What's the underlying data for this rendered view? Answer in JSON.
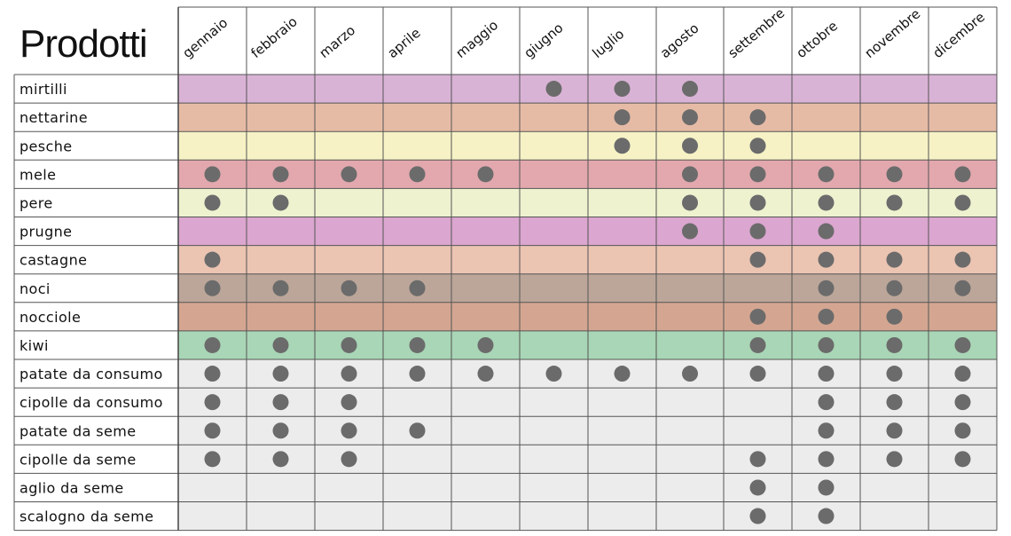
{
  "chart_data": {
    "type": "table",
    "title": "Prodotti",
    "months": [
      "gennaio",
      "febbraio",
      "marzo",
      "aprile",
      "maggio",
      "giugno",
      "luglio",
      "agosto",
      "settembre",
      "ottobre",
      "novembre",
      "dicembre"
    ],
    "rows": [
      {
        "name": "mirtilli",
        "color": "#d9b3d6",
        "months": [
          6,
          7,
          8
        ]
      },
      {
        "name": "nettarine",
        "color": "#e6bba6",
        "months": [
          7,
          8,
          9
        ]
      },
      {
        "name": "pesche",
        "color": "#f6f2c6",
        "months": [
          7,
          8,
          9
        ]
      },
      {
        "name": "mele",
        "color": "#e2a8ad",
        "months": [
          1,
          2,
          3,
          4,
          5,
          8,
          9,
          10,
          11,
          12
        ]
      },
      {
        "name": "pere",
        "color": "#eef2cf",
        "months": [
          1,
          2,
          8,
          9,
          10,
          11,
          12
        ]
      },
      {
        "name": "prugne",
        "color": "#dba6cf",
        "months": [
          8,
          9,
          10
        ]
      },
      {
        "name": "castagne",
        "color": "#ebc4b2",
        "months": [
          1,
          9,
          10,
          11,
          12
        ]
      },
      {
        "name": "noci",
        "color": "#bca699",
        "months": [
          1,
          2,
          3,
          4,
          10,
          11,
          12
        ]
      },
      {
        "name": "nocciole",
        "color": "#d4a691",
        "months": [
          9,
          10,
          11
        ]
      },
      {
        "name": "kiwi",
        "color": "#a9d6b6",
        "months": [
          1,
          2,
          3,
          4,
          5,
          9,
          10,
          11,
          12
        ]
      },
      {
        "name": "patate da consumo",
        "color": "#ececec",
        "months": [
          1,
          2,
          3,
          4,
          5,
          6,
          7,
          8,
          9,
          10,
          11,
          12
        ]
      },
      {
        "name": "cipolle da consumo",
        "color": "#ececec",
        "months": [
          1,
          2,
          3,
          10,
          11,
          12
        ]
      },
      {
        "name": "patate da seme",
        "color": "#ececec",
        "months": [
          1,
          2,
          3,
          4,
          10,
          11,
          12
        ]
      },
      {
        "name": "cipolle da seme",
        "color": "#ececec",
        "months": [
          1,
          2,
          3,
          9,
          10,
          11,
          12
        ]
      },
      {
        "name": "aglio da seme",
        "color": "#ececec",
        "months": [
          9,
          10
        ]
      },
      {
        "name": "scalogno da seme",
        "color": "#ececec",
        "months": [
          9,
          10
        ]
      }
    ],
    "dot_color": "#6b6b6b",
    "grid_color": "#555555"
  }
}
